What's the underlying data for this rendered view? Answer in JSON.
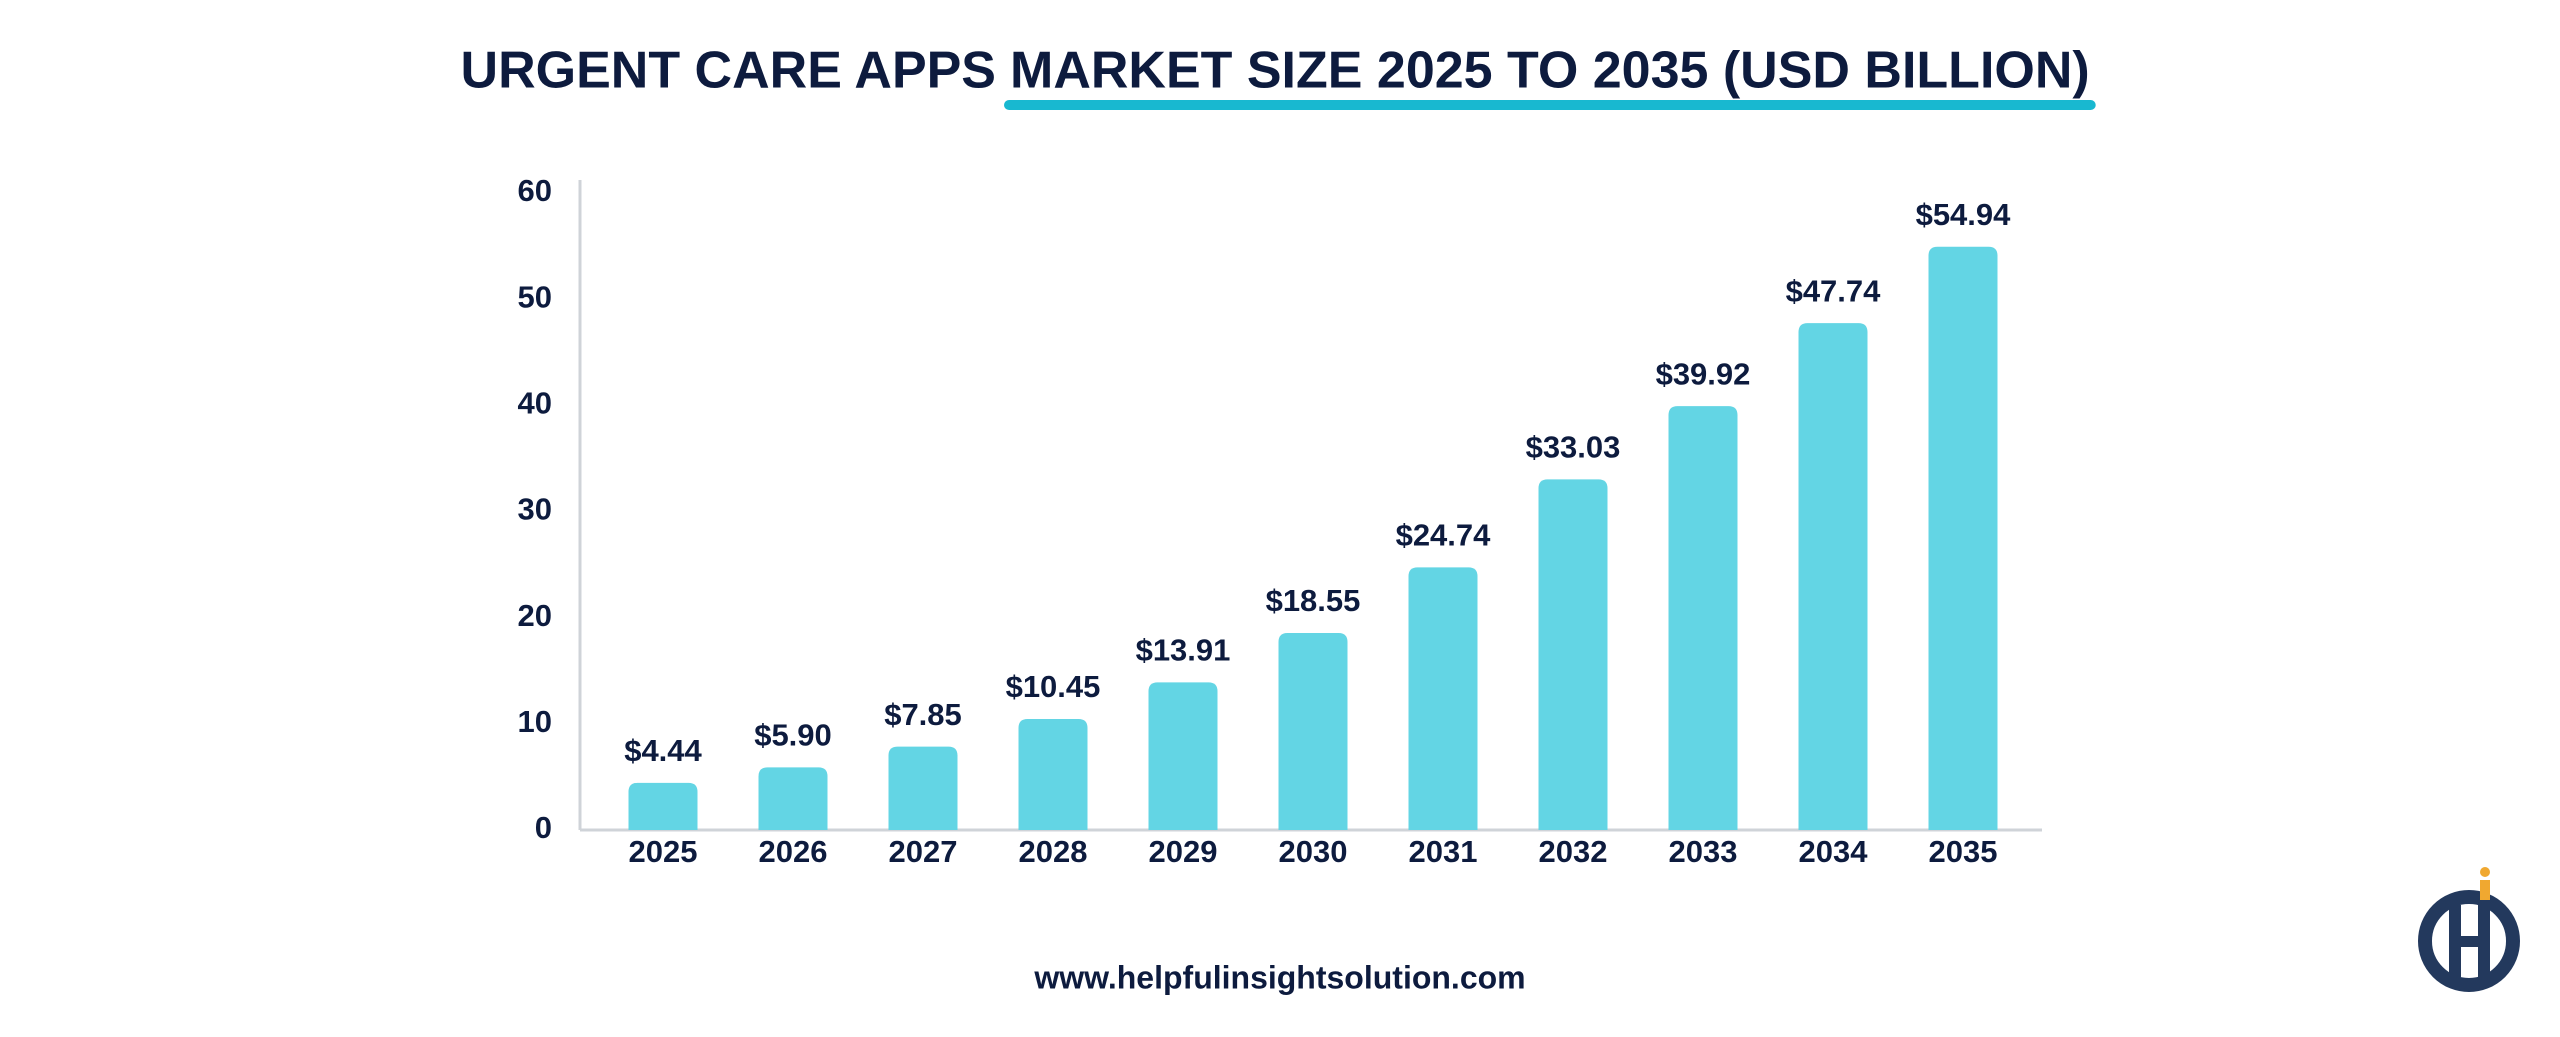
{
  "chart_data": {
    "type": "bar",
    "title": "URGENT CARE APPS",
    "title_highlight": "MARKET SIZE 2025 TO 2035 (USD BILLION)",
    "categories": [
      "2025",
      "2026",
      "2027",
      "2028",
      "2029",
      "2030",
      "2031",
      "2032",
      "2033",
      "2034",
      "2035"
    ],
    "values": [
      4.44,
      5.9,
      7.85,
      10.45,
      13.91,
      18.55,
      24.74,
      33.03,
      39.92,
      47.74,
      54.94
    ],
    "value_labels": [
      "$4.44",
      "$5.90",
      "$7.85",
      "$10.45",
      "$13.91",
      "$18.55",
      "$24.74",
      "$33.03",
      "$39.92",
      "$47.74",
      "$54.94"
    ],
    "color": "#63d5e4",
    "ylim": [
      0,
      60
    ],
    "yticks": [
      0,
      10,
      20,
      30,
      40,
      50,
      60
    ],
    "grid": false,
    "footer": "www.helpfulinsightsolution.com"
  }
}
